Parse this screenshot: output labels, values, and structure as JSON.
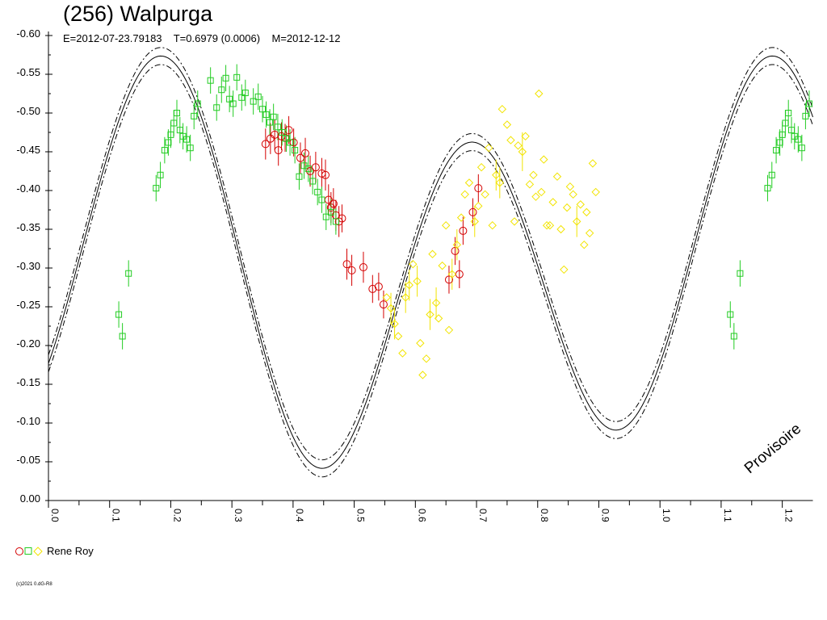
{
  "chart_data": {
    "type": "scatter",
    "title": "(256) Walpurga",
    "subtitle": "E=2012-07-23.79183    T=0.6979 (0.0006)    M=2012-12-12",
    "xlabel": "",
    "ylabel": "",
    "xlim": [
      0.0,
      1.25
    ],
    "ylim": [
      0.0,
      -0.6
    ],
    "y_inverted": true,
    "x_ticks": [
      "0.0",
      "0.1",
      "0.2",
      "0.3",
      "0.4",
      "0.5",
      "0.6",
      "0.7",
      "0.8",
      "0.9",
      "1.0",
      "1.1",
      "1.2"
    ],
    "y_ticks": [
      "0.00",
      "-0.05",
      "-0.10",
      "-0.15",
      "-0.20",
      "-0.25",
      "-0.30",
      "-0.35",
      "-0.40",
      "-0.45",
      "-0.50",
      "-0.55",
      "-0.60"
    ],
    "grid": false,
    "watermark": "Provisoire",
    "copyright": "(c)2021 0.dG-R8",
    "legend": {
      "label": "Rene Roy",
      "placement": "bottom-left"
    },
    "colors": {
      "red": "#d40000",
      "green": "#22cc22",
      "yellow": "#f2e400",
      "curve": "#000000"
    },
    "fit_curve": {
      "model": "fourier",
      "c": -0.2928,
      "a1": -0.044,
      "b1": -0.042,
      "a2": 0.16,
      "b2": -0.158,
      "band": 0.011,
      "period_phase": 1.0
    },
    "series": [
      {
        "name": "red-circles",
        "color": "#d40000",
        "marker": "circle",
        "points": [
          [
            0.355,
            -0.46,
            0.02
          ],
          [
            0.363,
            -0.467,
            0.02
          ],
          [
            0.37,
            -0.472,
            0.02
          ],
          [
            0.376,
            -0.452,
            0.02
          ],
          [
            0.381,
            -0.47,
            0.018
          ],
          [
            0.387,
            -0.468,
            0.018
          ],
          [
            0.393,
            -0.478,
            0.018
          ],
          [
            0.401,
            -0.462,
            0.018
          ],
          [
            0.412,
            -0.442,
            0.02
          ],
          [
            0.42,
            -0.448,
            0.02
          ],
          [
            0.428,
            -0.425,
            0.02
          ],
          [
            0.437,
            -0.43,
            0.02
          ],
          [
            0.447,
            -0.422,
            0.02
          ],
          [
            0.453,
            -0.42,
            0.02
          ],
          [
            0.458,
            -0.388,
            0.02
          ],
          [
            0.462,
            -0.378,
            0.02
          ],
          [
            0.466,
            -0.383,
            0.02
          ],
          [
            0.47,
            -0.368,
            0.02
          ],
          [
            0.475,
            -0.36,
            0.02
          ],
          [
            0.48,
            -0.364,
            0.018
          ],
          [
            0.488,
            -0.305,
            0.02
          ],
          [
            0.496,
            -0.297,
            0.02
          ],
          [
            0.515,
            -0.301,
            0.02
          ],
          [
            0.53,
            -0.273,
            0.018
          ],
          [
            0.54,
            -0.276,
            0.018
          ],
          [
            0.548,
            -0.253,
            0.018
          ],
          [
            0.655,
            -0.285,
            0.018
          ],
          [
            0.665,
            -0.322,
            0.018
          ],
          [
            0.672,
            -0.292,
            0.018
          ],
          [
            0.678,
            -0.348,
            0.018
          ],
          [
            0.694,
            -0.372,
            0.018
          ],
          [
            0.703,
            -0.403,
            0.018
          ]
        ]
      },
      {
        "name": "green-squares",
        "color": "#22cc22",
        "marker": "square",
        "points": [
          [
            0.115,
            -0.24,
            0.017
          ],
          [
            0.121,
            -0.212,
            0.017
          ],
          [
            0.131,
            -0.293,
            0.017
          ],
          [
            0.176,
            -0.403,
            0.017
          ],
          [
            0.183,
            -0.42,
            0.017
          ],
          [
            0.19,
            -0.452,
            0.017
          ],
          [
            0.196,
            -0.462,
            0.017
          ],
          [
            0.2,
            -0.472,
            0.017
          ],
          [
            0.205,
            -0.487,
            0.017
          ],
          [
            0.21,
            -0.5,
            0.017
          ],
          [
            0.215,
            -0.478,
            0.017
          ],
          [
            0.22,
            -0.47,
            0.017
          ],
          [
            0.226,
            -0.466,
            0.017
          ],
          [
            0.232,
            -0.455,
            0.017
          ],
          [
            0.238,
            -0.496,
            0.017
          ],
          [
            0.244,
            -0.512,
            0.017
          ],
          [
            0.265,
            -0.542,
            0.017
          ],
          [
            0.275,
            -0.507,
            0.017
          ],
          [
            0.283,
            -0.53,
            0.017
          ],
          [
            0.29,
            -0.545,
            0.017
          ],
          [
            0.296,
            -0.518,
            0.017
          ],
          [
            0.302,
            -0.512,
            0.017
          ],
          [
            0.308,
            -0.546,
            0.017
          ],
          [
            0.316,
            -0.52,
            0.017
          ],
          [
            0.322,
            -0.526,
            0.017
          ],
          [
            0.335,
            -0.515,
            0.017
          ],
          [
            0.343,
            -0.521,
            0.017
          ],
          [
            0.35,
            -0.505,
            0.017
          ],
          [
            0.356,
            -0.498,
            0.017
          ],
          [
            0.362,
            -0.488,
            0.017
          ],
          [
            0.368,
            -0.495,
            0.017
          ],
          [
            0.375,
            -0.482,
            0.017
          ],
          [
            0.382,
            -0.475,
            0.017
          ],
          [
            0.389,
            -0.467,
            0.017
          ],
          [
            0.395,
            -0.462,
            0.017
          ],
          [
            0.403,
            -0.452,
            0.017
          ],
          [
            0.41,
            -0.418,
            0.017
          ],
          [
            0.418,
            -0.432,
            0.017
          ],
          [
            0.425,
            -0.428,
            0.017
          ],
          [
            0.432,
            -0.412,
            0.017
          ],
          [
            0.44,
            -0.398,
            0.017
          ],
          [
            0.447,
            -0.388,
            0.017
          ],
          [
            0.454,
            -0.366,
            0.017
          ],
          [
            0.462,
            -0.372,
            0.017
          ],
          [
            0.47,
            -0.36,
            0.017
          ],
          [
            1.115,
            -0.24,
            0.017
          ],
          [
            1.121,
            -0.212,
            0.017
          ],
          [
            1.131,
            -0.293,
            0.017
          ],
          [
            1.176,
            -0.403,
            0.017
          ],
          [
            1.183,
            -0.42,
            0.017
          ],
          [
            1.19,
            -0.452,
            0.017
          ],
          [
            1.196,
            -0.462,
            0.017
          ],
          [
            1.2,
            -0.472,
            0.017
          ],
          [
            1.205,
            -0.487,
            0.017
          ],
          [
            1.21,
            -0.5,
            0.017
          ],
          [
            1.215,
            -0.478,
            0.017
          ],
          [
            1.22,
            -0.47,
            0.017
          ],
          [
            1.226,
            -0.466,
            0.017
          ],
          [
            1.232,
            -0.455,
            0.017
          ],
          [
            1.238,
            -0.496,
            0.017
          ],
          [
            1.244,
            -0.512,
            0.017
          ]
        ]
      },
      {
        "name": "yellow-diamonds",
        "color": "#f2e400",
        "marker": "diamond",
        "points": [
          [
            0.553,
            -0.262,
            0.0
          ],
          [
            0.56,
            -0.248,
            0.02
          ],
          [
            0.566,
            -0.228,
            0.02
          ],
          [
            0.572,
            -0.212,
            0.0
          ],
          [
            0.579,
            -0.19,
            0.0
          ],
          [
            0.584,
            -0.262,
            0.02
          ],
          [
            0.59,
            -0.278,
            0.02
          ],
          [
            0.596,
            -0.305,
            0.0
          ],
          [
            0.603,
            -0.283,
            0.02
          ],
          [
            0.608,
            -0.203,
            0.0
          ],
          [
            0.612,
            -0.162,
            0.0
          ],
          [
            0.618,
            -0.183,
            0.0
          ],
          [
            0.624,
            -0.24,
            0.02
          ],
          [
            0.628,
            -0.318,
            0.0
          ],
          [
            0.634,
            -0.255,
            0.02
          ],
          [
            0.638,
            -0.235,
            0.0
          ],
          [
            0.644,
            -0.303,
            0.0
          ],
          [
            0.65,
            -0.355,
            0.0
          ],
          [
            0.655,
            -0.22,
            0.0
          ],
          [
            0.66,
            -0.292,
            0.02
          ],
          [
            0.668,
            -0.33,
            0.02
          ],
          [
            0.675,
            -0.365,
            0.0
          ],
          [
            0.681,
            -0.395,
            0.0
          ],
          [
            0.688,
            -0.41,
            0.0
          ],
          [
            0.697,
            -0.36,
            0.02
          ],
          [
            0.703,
            -0.38,
            0.0
          ],
          [
            0.708,
            -0.43,
            0.0
          ],
          [
            0.714,
            -0.395,
            0.0
          ],
          [
            0.72,
            -0.455,
            0.0
          ],
          [
            0.726,
            -0.355,
            0.0
          ],
          [
            0.732,
            -0.42,
            0.02
          ],
          [
            0.738,
            -0.41,
            0.02
          ],
          [
            0.742,
            -0.505,
            0.0
          ],
          [
            0.75,
            -0.485,
            0.0
          ],
          [
            0.756,
            -0.465,
            0.0
          ],
          [
            0.762,
            -0.36,
            0.0
          ],
          [
            0.768,
            -0.458,
            0.0
          ],
          [
            0.775,
            -0.45,
            0.025
          ],
          [
            0.78,
            -0.47,
            0.0
          ],
          [
            0.787,
            -0.408,
            0.0
          ],
          [
            0.793,
            -0.42,
            0.0
          ],
          [
            0.797,
            -0.392,
            0.0
          ],
          [
            0.802,
            -0.525,
            0.0
          ],
          [
            0.806,
            -0.398,
            0.0
          ],
          [
            0.81,
            -0.44,
            0.0
          ],
          [
            0.815,
            -0.355,
            0.0
          ],
          [
            0.82,
            -0.355,
            0.0
          ],
          [
            0.825,
            -0.385,
            0.0
          ],
          [
            0.832,
            -0.418,
            0.0
          ],
          [
            0.838,
            -0.35,
            0.0
          ],
          [
            0.843,
            -0.298,
            0.0
          ],
          [
            0.848,
            -0.378,
            0.0
          ],
          [
            0.853,
            -0.405,
            0.0
          ],
          [
            0.858,
            -0.395,
            0.0
          ],
          [
            0.864,
            -0.36,
            0.02
          ],
          [
            0.87,
            -0.382,
            0.0
          ],
          [
            0.876,
            -0.33,
            0.0
          ],
          [
            0.88,
            -0.372,
            0.0
          ],
          [
            0.885,
            -0.345,
            0.0
          ],
          [
            0.89,
            -0.435,
            0.0
          ],
          [
            0.895,
            -0.398,
            0.0
          ]
        ]
      }
    ]
  }
}
